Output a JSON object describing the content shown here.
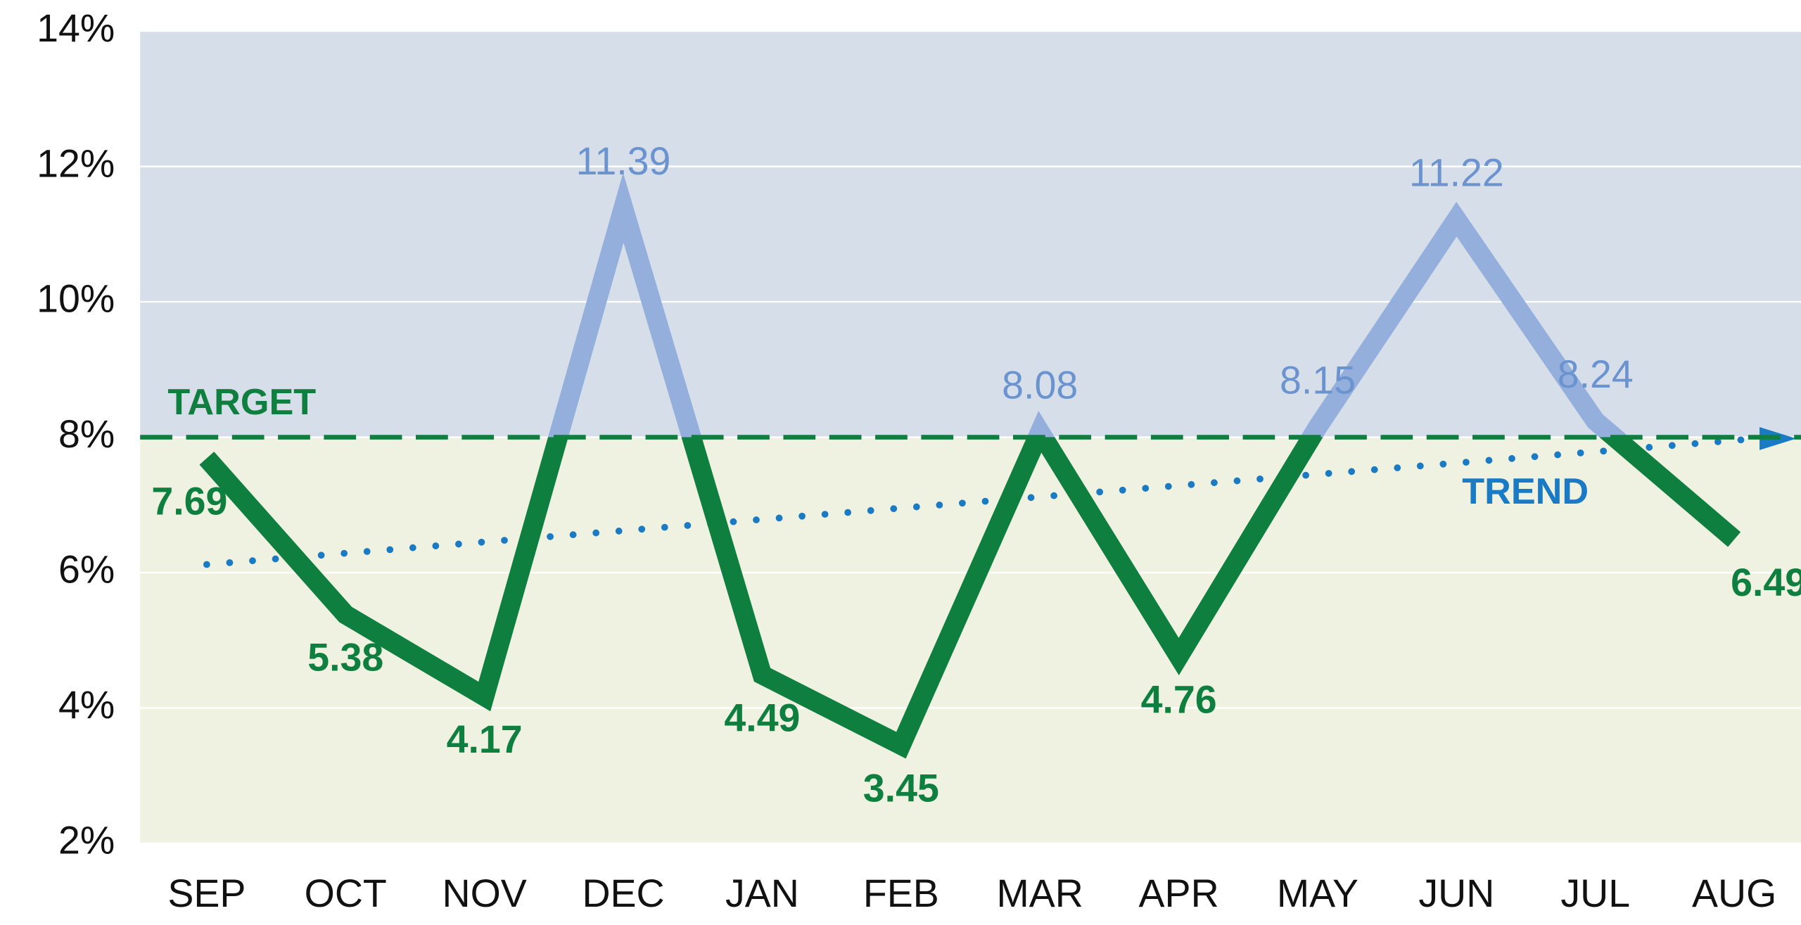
{
  "chart_data": {
    "type": "line",
    "categories": [
      "SEP",
      "OCT",
      "NOV",
      "DEC",
      "JAN",
      "FEB",
      "MAR",
      "APR",
      "MAY",
      "JUN",
      "JUL",
      "AUG"
    ],
    "series": [
      {
        "values": [
          7.69,
          5.38,
          4.17,
          11.39,
          4.49,
          3.45,
          8.08,
          4.76,
          8.15,
          11.22,
          8.24,
          6.49
        ],
        "color_below": "#0e7f3f",
        "color_above": "#94afdc"
      }
    ],
    "ylim": [
      2,
      14
    ],
    "yticks": [
      {
        "value": 2,
        "label": "2%"
      },
      {
        "value": 4,
        "label": "4%"
      },
      {
        "value": 6,
        "label": "6%"
      },
      {
        "value": 8,
        "label": "8%"
      },
      {
        "value": 10,
        "label": "10%"
      },
      {
        "value": 12,
        "label": "12%"
      },
      {
        "value": 14,
        "label": "14%"
      }
    ],
    "grid": true,
    "target": {
      "value": 8,
      "label": "TARGET",
      "color": "#0e7f3f",
      "band_above": "#d5dee9",
      "band_below": "#eff2e0"
    },
    "trend": {
      "label": "TREND",
      "start": 6.12,
      "end": 7.98,
      "color": "#1a7bc4"
    }
  }
}
